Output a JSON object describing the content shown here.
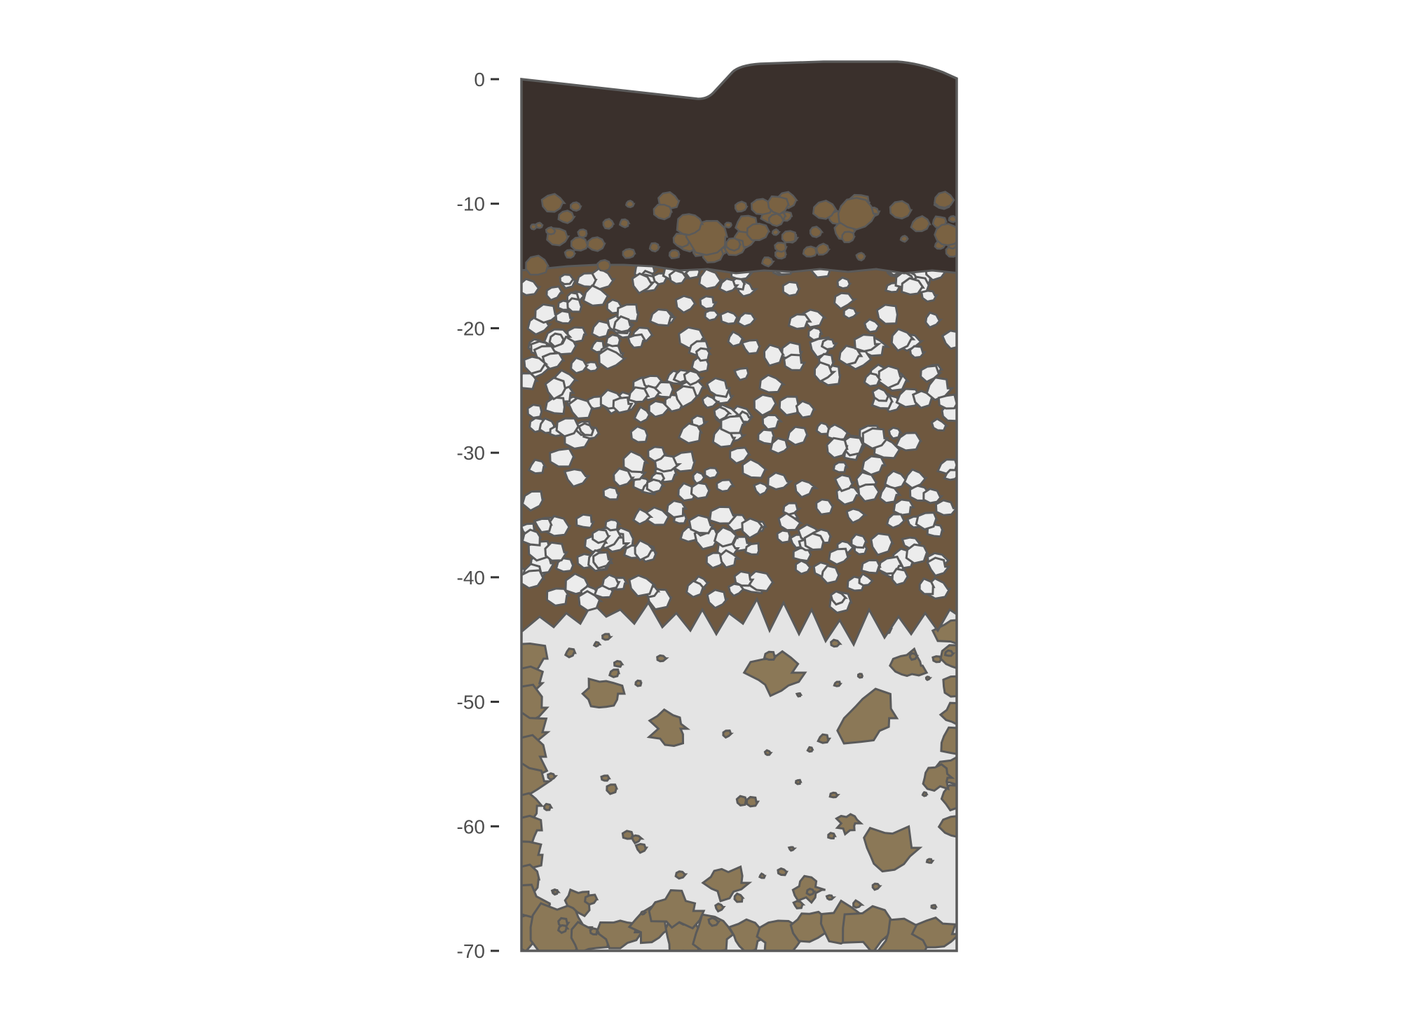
{
  "axis": {
    "ticks": [
      "0",
      "-10",
      "-20",
      "-30",
      "-40",
      "-50",
      "-60",
      "-70"
    ],
    "range": [
      0,
      -70
    ],
    "tick_values": [
      0,
      -10,
      -20,
      -30,
      -40,
      -50,
      -60,
      -70
    ]
  },
  "horizons": [
    {
      "top": 0,
      "bottom": -16,
      "color": "#3a302c",
      "texture": "dark topsoil with brown aggregates near base"
    },
    {
      "top": -16,
      "bottom": -44,
      "color": "#6f583f",
      "texture": "brown matrix with many light gray pebbles"
    },
    {
      "top": -44,
      "bottom": -70,
      "color": "#e4e4e4",
      "texture": "light gray material with brown inclusions"
    }
  ],
  "colors": {
    "outline": "#5a5a5a",
    "dark_horizon": "#3a302c",
    "brown_horizon": "#6f583f",
    "pale_horizon": "#e4e4e4",
    "inclusion": "#8b7857",
    "aggregate": "#7a6242",
    "pebble": "#ececec",
    "tick_text": "#4d4d4d"
  }
}
